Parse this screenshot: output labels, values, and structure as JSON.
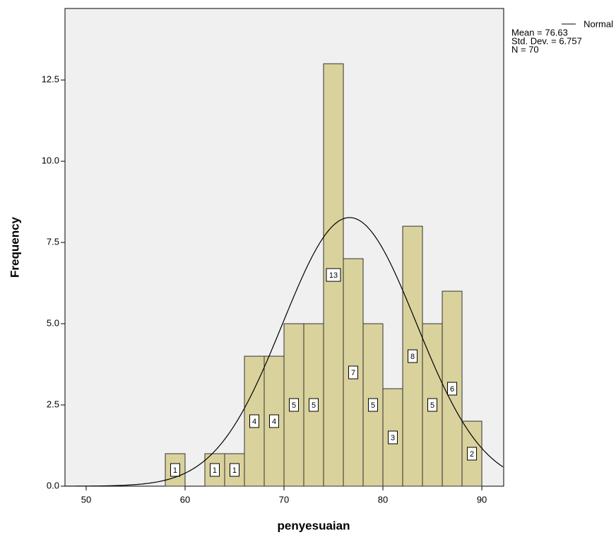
{
  "chart_data": {
    "type": "histogram",
    "x_label": "penyesuaian",
    "y_label": "Frequency",
    "bins": [
      58,
      60,
      62,
      64,
      66,
      68,
      70,
      72,
      74,
      76,
      78,
      80,
      82,
      84,
      86,
      88,
      90
    ],
    "values": [
      1,
      0,
      1,
      1,
      4,
      4,
      5,
      5,
      13,
      7,
      5,
      3,
      8,
      5,
      6,
      2
    ],
    "color": "#d6cc8e",
    "xlim": [
      47.86,
      92.21
    ],
    "xticks": [
      50,
      60,
      70,
      80,
      90
    ],
    "ylim": [
      0,
      14.7
    ],
    "yticks": [
      {
        "value": 0,
        "label": "0.0"
      },
      2.5,
      {
        "value": 5,
        "label": "5.0"
      },
      7.5,
      {
        "value": 10,
        "label": "10.0"
      },
      12.5
    ],
    "legend": {
      "name": "Normal",
      "position": "upper right",
      "stats": {
        "mean": 76.63,
        "std_dev": 6.757,
        "n": 70
      },
      "stats_labels": [
        "Mean = 76.63",
        "Std. Dev. = 6.757",
        "N = 70"
      ]
    }
  }
}
